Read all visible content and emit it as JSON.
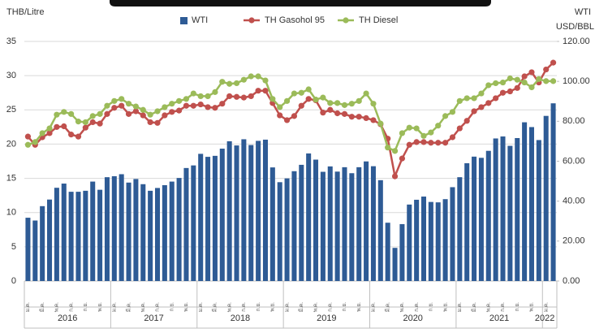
{
  "chart_data": {
    "type": "combo",
    "y_axis_label": "THB/Litre",
    "y2_axis_label": [
      "WTI",
      "USD/BBL"
    ],
    "ylim": [
      0,
      35
    ],
    "yticks": [
      0,
      5,
      10,
      15,
      20,
      25,
      30,
      35
    ],
    "y2lim": [
      0,
      120
    ],
    "y2ticks": [
      {
        "value": 0,
        "label": "0.00"
      },
      {
        "value": 20,
        "label": "20.00"
      },
      {
        "value": 40,
        "label": "40.00"
      },
      {
        "value": 60,
        "label": "60.00"
      },
      {
        "value": 80,
        "label": "80.00"
      },
      {
        "value": 100,
        "label": "100.00"
      },
      {
        "value": 120,
        "label": "120.00"
      }
    ],
    "grid": true,
    "legend": "top",
    "categories": [
      "ม.ค.",
      null,
      "มี.ค.",
      null,
      "พ.ค.",
      null,
      "ก.ค.",
      null,
      "ก.ย.",
      null,
      "พ.ย.",
      null,
      "ม.ค.",
      null,
      "มี.ค.",
      null,
      "พ.ค.",
      null,
      "ก.ค.",
      null,
      "ก.ย.",
      null,
      "พ.ย.",
      null,
      "ม.ค.",
      null,
      "มี.ค.",
      null,
      "พ.ค.",
      null,
      "ก.ค.",
      null,
      "ก.ย.",
      null,
      "พ.ย.",
      null,
      "ม.ค.",
      null,
      "มี.ค.",
      null,
      "พ.ค.",
      null,
      "ก.ค.",
      null,
      "ก.ย.",
      null,
      "พ.ย.",
      null,
      "ม.ค.",
      null,
      "มี.ค.",
      null,
      "พ.ค.",
      null,
      "ก.ค.",
      null,
      "ก.ย.",
      null,
      "พ.ย.",
      null,
      "ม.ค.",
      null,
      "มี.ค.",
      null,
      "พ.ค.",
      null,
      "ก.ค.",
      null,
      "ก.ย.",
      null,
      "พ.ย.",
      null,
      "ม.ค.",
      null
    ],
    "year_groups": [
      {
        "label": "2016",
        "months": 12
      },
      {
        "label": "2017",
        "months": 12
      },
      {
        "label": "2018",
        "months": 12
      },
      {
        "label": "2019",
        "months": 12
      },
      {
        "label": "2020",
        "months": 12
      },
      {
        "label": "2021",
        "months": 12
      },
      {
        "label": "2022",
        "months": 2
      }
    ],
    "series": [
      {
        "name": "WTI",
        "type": "bar",
        "axis": "y2",
        "color": "#2e5b95",
        "values": [
          31.7,
          30.3,
          37.5,
          40.8,
          46.7,
          48.8,
          44.7,
          44.7,
          45.2,
          49.8,
          45.7,
          52.0,
          52.5,
          53.5,
          49.3,
          51.1,
          48.5,
          45.2,
          46.6,
          48.0,
          49.8,
          51.6,
          56.6,
          57.9,
          63.7,
          62.2,
          62.7,
          66.3,
          70.0,
          67.9,
          71.0,
          68.1,
          70.2,
          70.8,
          56.9,
          49.5,
          51.4,
          55.0,
          58.2,
          63.9,
          60.8,
          54.7,
          57.4,
          54.8,
          57.0,
          54.0,
          57.0,
          59.9,
          57.5,
          50.5,
          29.2,
          16.6,
          28.5,
          38.3,
          40.7,
          42.3,
          39.6,
          39.4,
          41.0,
          47.0,
          52.0,
          59.0,
          62.3,
          61.7,
          65.2,
          71.4,
          72.4,
          67.7,
          71.6,
          79.5,
          77.1,
          70.6,
          82.7,
          89.0
        ]
      },
      {
        "name": "TH Gasohol 95",
        "type": "line",
        "color": "#c0504d",
        "values": [
          21.1,
          19.9,
          21.0,
          21.6,
          22.5,
          22.6,
          21.4,
          21.1,
          22.4,
          23.2,
          23.0,
          24.4,
          25.3,
          25.6,
          24.4,
          24.8,
          24.2,
          23.2,
          23.1,
          24.2,
          24.7,
          24.9,
          25.6,
          25.6,
          25.8,
          25.4,
          25.3,
          25.9,
          27.0,
          26.9,
          26.8,
          27.0,
          27.8,
          27.8,
          26.0,
          24.2,
          23.5,
          24.1,
          25.6,
          26.6,
          26.4,
          24.6,
          25.0,
          24.5,
          24.4,
          24.0,
          24.0,
          23.8,
          23.5,
          22.9,
          20.8,
          15.3,
          17.9,
          19.9,
          20.3,
          20.3,
          20.2,
          20.2,
          20.2,
          21.0,
          22.3,
          23.4,
          24.8,
          25.4,
          26.0,
          26.7,
          27.5,
          27.7,
          28.2,
          29.9,
          30.5,
          29.0,
          30.9,
          31.9
        ]
      },
      {
        "name": "TH Diesel",
        "type": "line",
        "color": "#9bbb59",
        "values": [
          19.9,
          20.3,
          21.6,
          22.3,
          24.3,
          24.7,
          24.4,
          23.3,
          23.2,
          24.1,
          24.4,
          25.6,
          26.3,
          26.6,
          25.9,
          25.5,
          25.0,
          24.3,
          24.8,
          25.4,
          25.9,
          26.3,
          26.6,
          27.4,
          27.0,
          27.0,
          27.6,
          29.1,
          28.8,
          28.9,
          29.4,
          29.9,
          29.9,
          29.3,
          26.6,
          25.4,
          26.3,
          27.4,
          27.5,
          28.0,
          26.5,
          26.8,
          26.0,
          26.0,
          25.7,
          25.9,
          26.3,
          27.4,
          25.9,
          23.0,
          19.5,
          19.0,
          21.6,
          22.4,
          22.3,
          21.2,
          21.7,
          22.7,
          24.1,
          24.7,
          26.3,
          26.7,
          26.7,
          27.4,
          28.6,
          28.9,
          29.0,
          29.6,
          29.4,
          29.0,
          28.3,
          29.5,
          29.2,
          29.2
        ]
      }
    ]
  }
}
